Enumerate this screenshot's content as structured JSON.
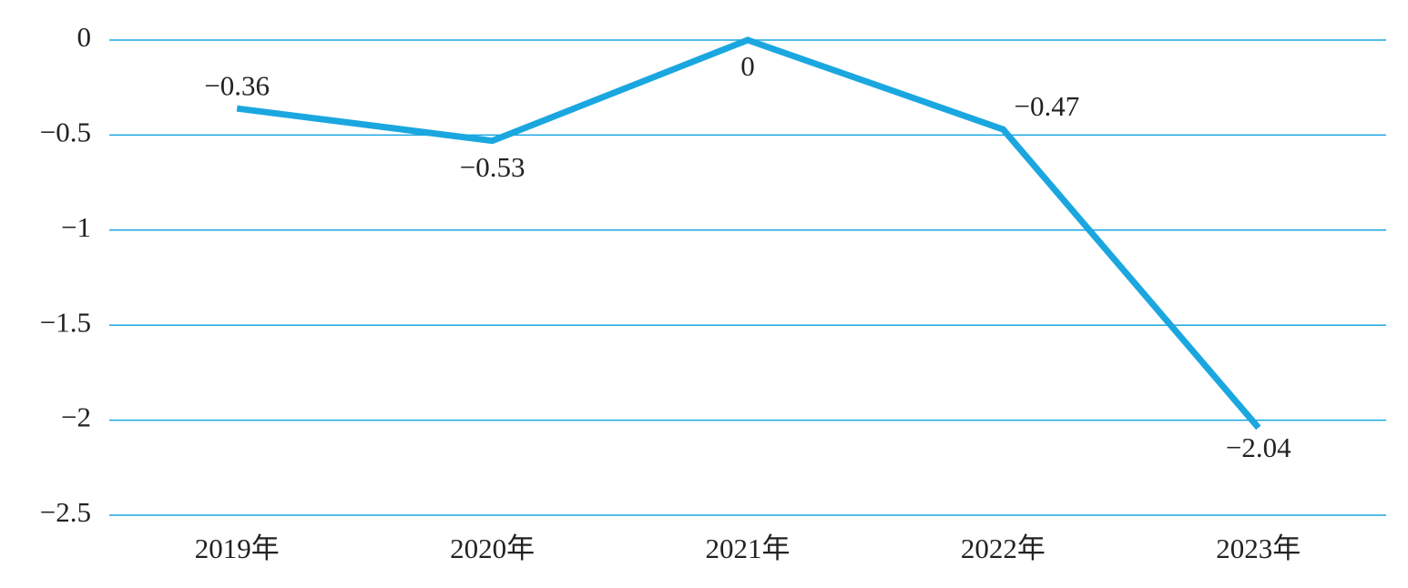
{
  "chart_data": {
    "type": "line",
    "categories": [
      "2019年",
      "2020年",
      "2021年",
      "2022年",
      "2023年"
    ],
    "series": [
      {
        "color": "#1aa7e0",
        "values": [
          -0.36,
          -0.53,
          0,
          -0.47,
          -2.04
        ],
        "value_labels": [
          "−0.36",
          "−0.53",
          "0",
          "−0.47",
          "−2.04"
        ]
      }
    ],
    "ylim": [
      -2.5,
      0
    ],
    "yticks": [
      0,
      {
        "value": -0.5,
        "label": "−0.5"
      },
      {
        "value": -1,
        "label": "−1"
      },
      {
        "value": -1.5,
        "label": "−1.5"
      },
      {
        "value": -2,
        "label": "−2"
      },
      {
        "value": -2.5,
        "label": "−2.5"
      }
    ],
    "grid": true
  }
}
